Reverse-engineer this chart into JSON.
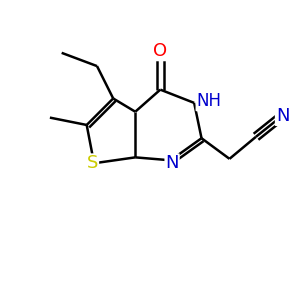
{
  "bg_color": "#ffffff",
  "atom_colors": {
    "C": "#000000",
    "N": "#0000cd",
    "O": "#ff0000",
    "S": "#cccc00"
  },
  "line_color": "#000000",
  "line_width": 1.8,
  "figsize": [
    3.0,
    3.0
  ],
  "dpi": 100
}
